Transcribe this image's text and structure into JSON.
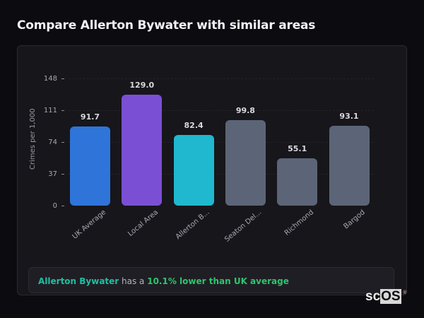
{
  "page": {
    "title": "Compare Allerton Bywater with similar areas"
  },
  "chart_data": {
    "type": "bar",
    "title": "",
    "xlabel": "",
    "ylabel": "Crimes per 1,000",
    "ylim": [
      0,
      148
    ],
    "yticks": [
      0,
      37,
      74,
      111,
      148
    ],
    "grid": true,
    "legend": "none",
    "categories": [
      "UK Average",
      "Local Area",
      "Allerton B...",
      "Seaton Del...",
      "Richmond",
      "Bargod"
    ],
    "values": [
      91.7,
      129.0,
      82.4,
      99.8,
      55.1,
      93.1
    ],
    "value_labels": [
      "91.7",
      "129.0",
      "82.4",
      "99.8",
      "55.1",
      "93.1"
    ],
    "colors": [
      "#2f74d8",
      "#7b4fd4",
      "#1fb8cf",
      "#5b6577",
      "#5b6577",
      "#5b6577"
    ]
  },
  "summary": {
    "area": "Allerton Bywater",
    "middle": " has a ",
    "comparison": "10.1% lower than UK average"
  },
  "watermark": {
    "prefix": "sc",
    "highlight": "OS",
    "mark": "®"
  }
}
